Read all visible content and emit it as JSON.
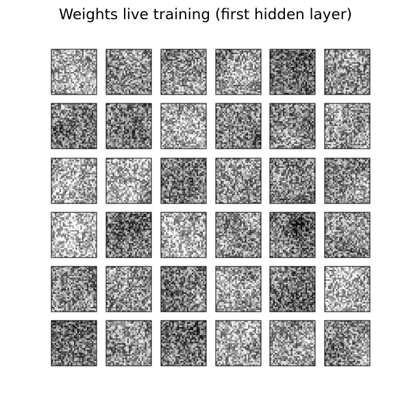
{
  "title": "Weights live training (first hidden layer)",
  "chart_data": {
    "type": "heatmap",
    "title": "Weights live training (first hidden layer)",
    "rows": 6,
    "columns": 6,
    "subplot_count": 36,
    "tile_resolution": [
      28,
      28
    ],
    "colormap": "gray",
    "tile_mean_brightness": [
      [
        0.66,
        0.52,
        0.56,
        0.62,
        0.42,
        0.53
      ],
      [
        0.47,
        0.5,
        0.68,
        0.54,
        0.52,
        0.6
      ],
      [
        0.64,
        0.68,
        0.45,
        0.58,
        0.48,
        0.52
      ],
      [
        0.7,
        0.46,
        0.62,
        0.56,
        0.46,
        0.53
      ],
      [
        0.52,
        0.6,
        0.45,
        0.63,
        0.4,
        0.7
      ],
      [
        0.44,
        0.58,
        0.44,
        0.66,
        0.6,
        0.55
      ]
    ],
    "tick_labels": false,
    "axes_frame": true,
    "grid": false,
    "legend": "none"
  }
}
